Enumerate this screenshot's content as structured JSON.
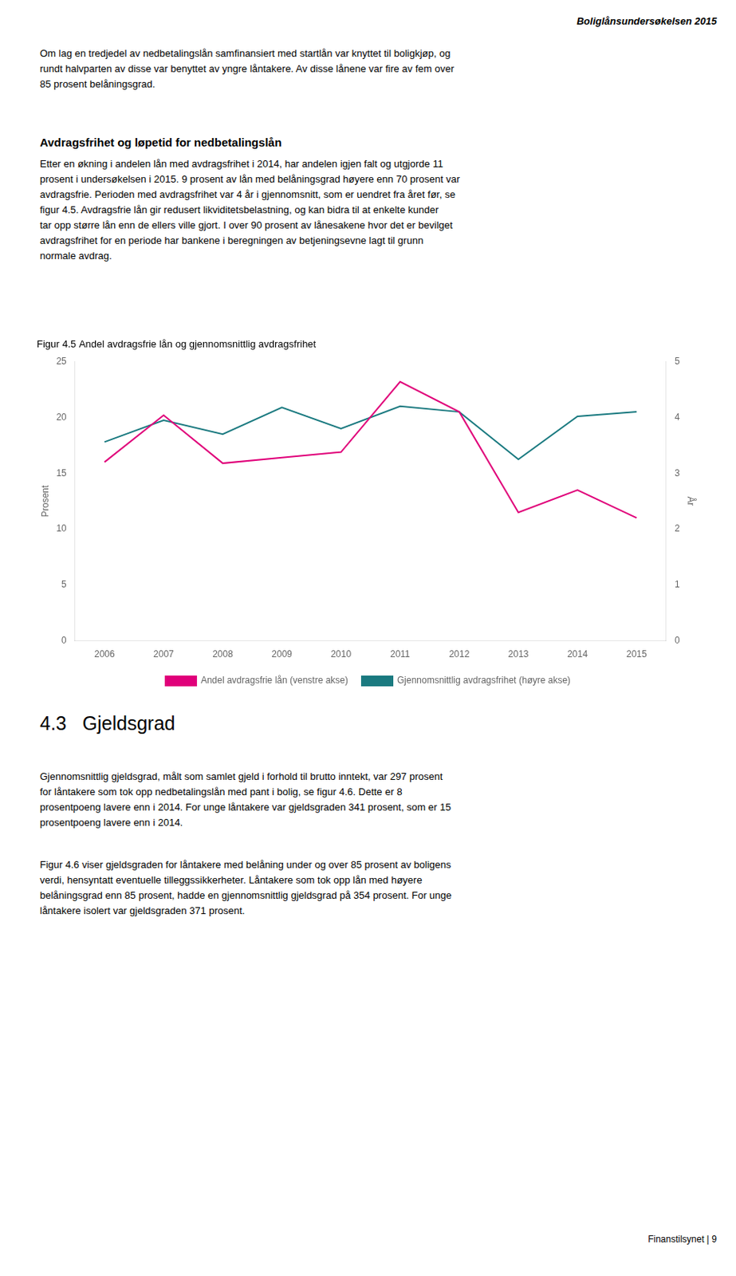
{
  "page_title": "Boliglånsundersøkelsen 2015",
  "intro_text": "Om lag en tredjedel av nedbetalingslån samfinansiert med startlån var knyttet til boligkjøp, og\nrundt halvparten av disse var benyttet av yngre låntakere. Av disse lånene var fire av fem over\n85 prosent belåningsgrad.",
  "main_heading": "Avdragsfrihet og løpetid for nedbetalingslån",
  "body_text1": "Etter en økning i andelen lån med avdragsfrihet i 2014, har andelen igjen falt og utgjorde 11\nprosent i undersøkelsen i 2015. 9 prosent av lån med belåningsgrad høyere enn 70 prosent var\navdragsfrie. Perioden med avdragsfrihet var 4 år i gjennomsnitt, som er uendret fra året før, se\nfigur 4.5. Avdragsfrie lån gir redusert likviditetsbelastning, og kan bidra til at enkelte kunder\ntar opp større lån enn de ellers ville gjort. I over 90 prosent av lånesakene hvor det er bevilget\navdragsfrihet for en periode har bankene i beregningen av betjeningsevne lagt til grunn\nnormale avdrag.",
  "section_heading": "4.3   Gjeldsgrad",
  "section_text": "Gjennomsnittlig gjeldsgrad, målt som samlet gjeld i forhold til brutto inntekt, var 297 prosent\nfor låntakere som tok opp nedbetalingslån med pant i bolig, se figur 4.6. Dette er 8\nprosentpoeng lavere enn i 2014. For unge låntakere var gjeldsgraden 341 prosent, som er 15\nprosentpoeng lavere enn i 2014.",
  "section_text2": "Figur 4.6 viser gjeldsgraden for låntakere med belåning under og over 85 prosent av boligens\nverdi, hensyntatt eventuelle tilleggssikkerheter. Låntakere som tok opp lån med høyere\nbelåningsgrad enn 85 prosent, hadde en gjennomsnittlig gjeldsgrad på 354 prosent. For unge\nlåntakere isolert var gjeldsgraden 371 prosent.",
  "page_footer": "Finanstilsynet | 9",
  "chart_data": {
    "type": "line",
    "title": "Figur 4.5 Andel avdragsfrie lån og gjennomsnittlig avdragsfrihet",
    "x": [
      2006,
      2007,
      2008,
      2009,
      2010,
      2011,
      2012,
      2013,
      2014,
      2015
    ],
    "xlim": [
      2005.5,
      2015.5
    ],
    "xticks": [
      2006,
      2007,
      2008,
      2009,
      2010,
      2011,
      2012,
      2013,
      2014,
      2015
    ],
    "ylabel": "Prosent",
    "ylim": [
      0,
      25
    ],
    "yticks": [
      0,
      5,
      10,
      15,
      20,
      25
    ],
    "y2label": "År",
    "y2lim": [
      0,
      5
    ],
    "y2ticks": [
      0,
      1,
      2,
      3,
      4,
      5
    ],
    "grid": false,
    "legend": "bottom",
    "series": [
      {
        "name": "Andel avdragsfrie lån (venstre akse)",
        "color": "#e0007a",
        "values": [
          16,
          20.2,
          15.9,
          16.4,
          16.9,
          23.2,
          20.5,
          11.5,
          13.5,
          11.0
        ]
      },
      {
        "name": "Gjennomsnittlig avdragsfrihet (høyre akse)",
        "color": "#1a7a80",
        "axis": "y2",
        "values": [
          3.56,
          3.95,
          3.7,
          4.18,
          3.8,
          4.2,
          4.1,
          3.25,
          4.02,
          4.1
        ]
      }
    ]
  }
}
